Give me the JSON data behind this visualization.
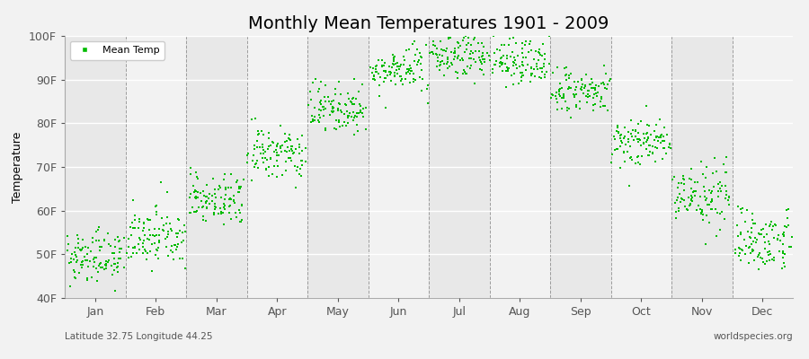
{
  "title": "Monthly Mean Temperatures 1901 - 2009",
  "ylabel": "Temperature",
  "bottom_left_text": "Latitude 32.75 Longitude 44.25",
  "bottom_right_text": "worldspecies.org",
  "legend_label": "Mean Temp",
  "ylim": [
    40,
    100
  ],
  "ytick_labels": [
    "40F",
    "50F",
    "60F",
    "70F",
    "80F",
    "90F",
    "100F"
  ],
  "ytick_values": [
    40,
    50,
    60,
    70,
    80,
    90,
    100
  ],
  "months": [
    "Jan",
    "Feb",
    "Mar",
    "Apr",
    "May",
    "Jun",
    "Jul",
    "Aug",
    "Sep",
    "Oct",
    "Nov",
    "Dec"
  ],
  "monthly_mean_F": [
    49.5,
    54.0,
    62.5,
    73.0,
    83.5,
    92.0,
    95.5,
    94.0,
    87.0,
    76.0,
    63.5,
    53.5
  ],
  "monthly_std_F": [
    3.0,
    3.2,
    3.2,
    3.0,
    2.8,
    2.5,
    2.5,
    2.5,
    2.8,
    3.0,
    3.5,
    3.5
  ],
  "n_years": 109,
  "marker_color": "#00bb00",
  "marker_size": 3,
  "bg_color": "#f2f2f2",
  "band_even_color": "#e8e8e8",
  "band_odd_color": "#f2f2f2",
  "title_fontsize": 14,
  "axis_label_fontsize": 9,
  "tick_fontsize": 9,
  "legend_fontsize": 8
}
